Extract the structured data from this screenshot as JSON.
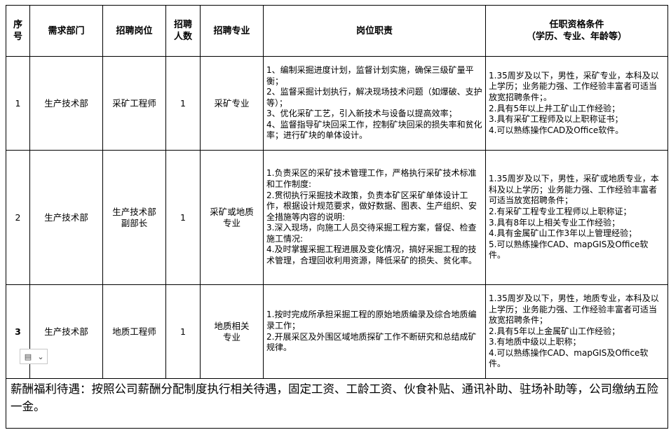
{
  "headers": [
    "序号",
    "需求部门",
    "招聘岗位",
    "招聘人数",
    "招聘专业",
    "岗位职责",
    "任职资格条件"
  ],
  "header_lines": {
    "0": [
      "序",
      "号"
    ],
    "3": [
      "招聘",
      "人数"
    ],
    "6": [
      "任职资格条件",
      "（学历、专业、年龄等）"
    ]
  },
  "rows": [
    {
      "no": "1",
      "dept": "生产技术部",
      "position": [
        "采矿工程师"
      ],
      "count": "1",
      "major": [
        "采矿专业"
      ],
      "duties": [
        "1、编制采掘进度计划，监督计划实施，确保三级矿量平衡；",
        "2、监督采掘计划执行，解决现场技术问题（如爆破、支护等）；",
        "3、优化采矿工艺，引入新技术与设备以提高效率；",
        "4、监督指导矿块回采工作，控制矿块回采的损失率和贫化率；进行矿块的单体设计。"
      ],
      "requirements": [
        "1.35周岁及以下，男性，采矿专业，本科及以上学历；业务能力强、工作经验丰富者可适当放宽招聘条件；。",
        "2.具有5年以上井工矿山工作经验；",
        "3.具有采矿工程师及以上职称证书；",
        "4.可以熟练操作CAD及Office软件。"
      ]
    },
    {
      "no": "2",
      "dept": "生产技术部",
      "position": [
        "生产技术部",
        "副部长"
      ],
      "count": "1",
      "major": [
        "采矿或地质",
        "专业"
      ],
      "duties": [
        "1.负责采区的采矿技术管理工作，严格执行采矿技术标准和工作制度:",
        "2.贯彻执行采掘技术政策，负责本矿区采矿单体设计工作，根据设计规范要求，做好数据、图表、生产组织、安全措施等内容的说明:",
        "3.深入现场，向施工人员交待采掘工程方案，督促、检查施工情况:",
        "4.及时掌握采掘工程进展及变化情况，搞好采掘工程的技术管理，合理回收利用资源，降低采矿的损失、贫化率。"
      ],
      "requirements": [
        "1.35周岁及以下，男性，采矿或地质专业，本科及以上学历；业务能力强、工作经验丰富者可适当放宽招聘条件；",
        "2.有采矿工程专业工程师以上职称证；",
        "3.具有8年以上相关专业工作经验；",
        "4.具有金属矿山工作3年以上管理经验；",
        "5.可以熟练操作CAD、mapGIS及Office软件。"
      ]
    },
    {
      "no": "3",
      "dept": "生产技术部",
      "position": [
        "地质工程师"
      ],
      "count": "1",
      "major": [
        "地质相关",
        "专业"
      ],
      "duties": [
        "1.按时完成所承担采掘工程的原始地质编录及综合地质编录工作；",
        "2.开展采区及外围区域地质探矿工作不断研究和总结成矿规律。"
      ],
      "requirements": [
        "1.35周岁及以下，男性，地质专业，本科及以上学历；业务能力强、工作经验丰富者可适当放宽招聘条件；",
        "2.具有5年以上金属矿山工作经验；",
        "3.有地质中级以上职称；",
        "4.可以熟练操作CAD、mapGIS及Office软件。"
      ]
    }
  ],
  "footer": "薪酬福利待遇：按照公司薪酬分配制度执行相关待遇，固定工资、工龄工资、伙食补贴、通讯补助、驻场补助等，公司缴纳五险一金。",
  "paste_options": {
    "icon": "paste-options-icon",
    "chevron": "chevron-down-icon"
  }
}
